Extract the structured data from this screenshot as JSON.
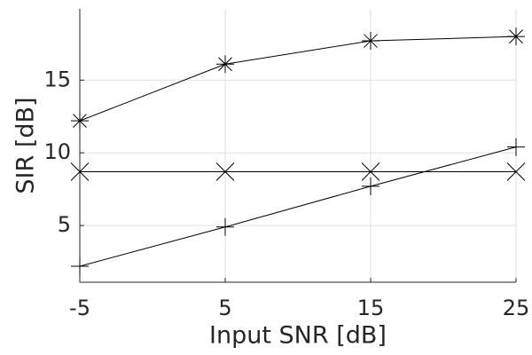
{
  "chart_data": {
    "type": "line",
    "x_label": "Input SNR [dB]",
    "y_label": "SIR [dB]",
    "x": [
      -5,
      5,
      15,
      25
    ],
    "xlim": [
      -5,
      25
    ],
    "xticks": [
      -5,
      5,
      15,
      25
    ],
    "ylim": [
      1.1,
      19.9
    ],
    "yticks": [
      5,
      10,
      15
    ],
    "grid": true,
    "series": [
      {
        "color": "#000000",
        "marker": "asterisk",
        "values": [
          12.2,
          16.1,
          17.7,
          18.0
        ]
      },
      {
        "color": "#000000",
        "marker": "x",
        "values": [
          8.7,
          8.7,
          8.7,
          8.7
        ]
      },
      {
        "color": "#000000",
        "marker": "plus",
        "values": [
          2.2,
          4.9,
          7.7,
          10.4
        ]
      }
    ]
  }
}
